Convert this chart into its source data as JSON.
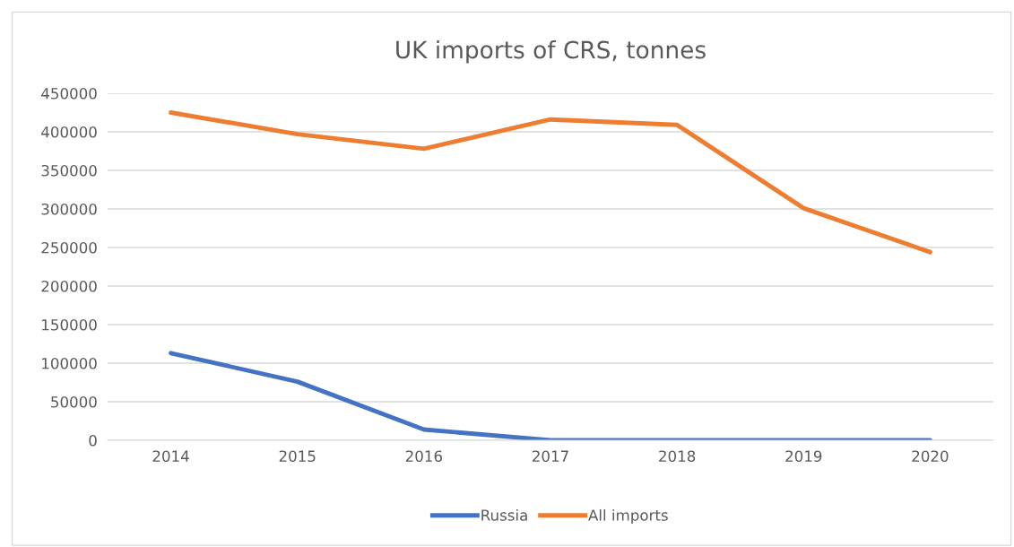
{
  "chart_data": {
    "type": "line",
    "title": "UK imports of CRS, tonnes",
    "categories": [
      "2014",
      "2015",
      "2016",
      "2017",
      "2018",
      "2019",
      "2020"
    ],
    "series": [
      {
        "name": "Russia",
        "color": "#4472c4",
        "values": [
          113000,
          76000,
          14000,
          0,
          0,
          0,
          0
        ]
      },
      {
        "name": "All imports",
        "color": "#ed7d31",
        "values": [
          425000,
          397000,
          378000,
          416000,
          409000,
          301000,
          244000
        ]
      }
    ],
    "ylim": [
      0,
      450000
    ],
    "yticks": [
      0,
      50000,
      100000,
      150000,
      200000,
      250000,
      300000,
      350000,
      400000,
      450000
    ],
    "grid": "y",
    "legend": "bottom",
    "marker": "none",
    "line_style": "solid"
  }
}
